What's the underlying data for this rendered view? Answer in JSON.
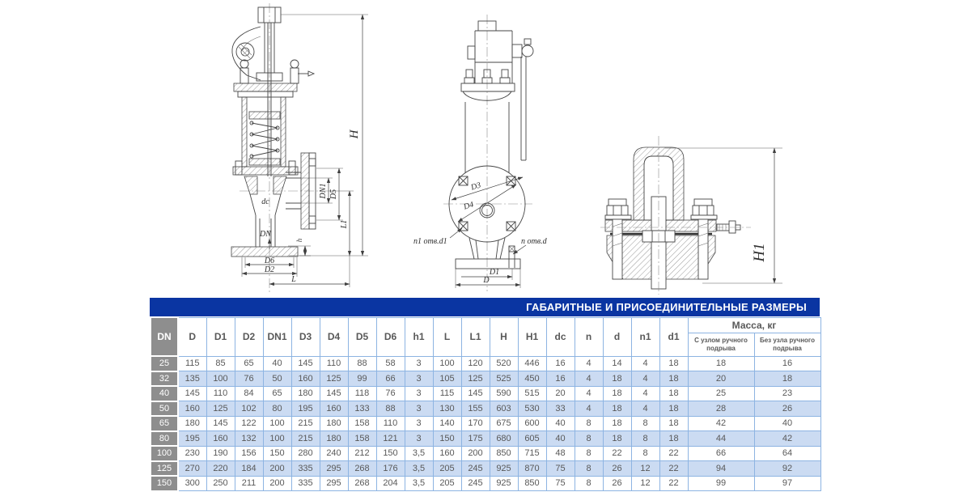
{
  "drawings": {
    "left": {
      "name": "valve cross-section drawing",
      "labels": {
        "H": "H",
        "DN1": "DN1",
        "D5": "D5",
        "L1": "L1",
        "dc": "dc",
        "DN": "DN",
        "h": "h",
        "D6": "D6",
        "D2": "D2",
        "L": "L"
      }
    },
    "middle": {
      "name": "valve outline drawing",
      "labels": {
        "D3": "D3",
        "D4": "D4",
        "n1_holes": "n1 отв.d1",
        "n_holes": "n отв.d",
        "D1": "D1",
        "D": "D"
      }
    },
    "right": {
      "name": "valve cap section drawing",
      "labels": {
        "H1": "H1"
      }
    }
  },
  "table": {
    "title": "ГАБАРИТНЫЕ И ПРИСОЕДИНИТЕЛЬНЫЕ РАЗМЕРЫ",
    "columns": [
      "DN",
      "D",
      "D1",
      "D2",
      "DN1",
      "D3",
      "D4",
      "D5",
      "D6",
      "h1",
      "L",
      "L1",
      "H",
      "H1",
      "dc",
      "n",
      "d",
      "n1",
      "d1"
    ],
    "mass_header": "Масса, кг",
    "mass_subcolumns": [
      "С узлом ручного подрыва",
      "Без узла ручного подрыва"
    ],
    "rows": [
      {
        "dn": "25",
        "values": [
          "115",
          "85",
          "65",
          "40",
          "145",
          "110",
          "88",
          "58",
          "3",
          "100",
          "120",
          "520",
          "446",
          "16",
          "4",
          "14",
          "4",
          "18"
        ],
        "mass": [
          "18",
          "16"
        ]
      },
      {
        "dn": "32",
        "values": [
          "135",
          "100",
          "76",
          "50",
          "160",
          "125",
          "99",
          "66",
          "3",
          "105",
          "125",
          "525",
          "450",
          "16",
          "4",
          "18",
          "4",
          "18"
        ],
        "mass": [
          "20",
          "18"
        ]
      },
      {
        "dn": "40",
        "values": [
          "145",
          "110",
          "84",
          "65",
          "180",
          "145",
          "118",
          "76",
          "3",
          "115",
          "145",
          "590",
          "515",
          "20",
          "4",
          "18",
          "4",
          "18"
        ],
        "mass": [
          "25",
          "23"
        ]
      },
      {
        "dn": "50",
        "values": [
          "160",
          "125",
          "102",
          "80",
          "195",
          "160",
          "133",
          "88",
          "3",
          "130",
          "155",
          "603",
          "530",
          "33",
          "4",
          "18",
          "4",
          "18"
        ],
        "mass": [
          "28",
          "26"
        ]
      },
      {
        "dn": "65",
        "values": [
          "180",
          "145",
          "122",
          "100",
          "215",
          "180",
          "158",
          "110",
          "3",
          "140",
          "170",
          "675",
          "600",
          "40",
          "8",
          "18",
          "8",
          "18"
        ],
        "mass": [
          "42",
          "40"
        ]
      },
      {
        "dn": "80",
        "values": [
          "195",
          "160",
          "132",
          "100",
          "215",
          "180",
          "158",
          "121",
          "3",
          "150",
          "175",
          "680",
          "605",
          "40",
          "8",
          "18",
          "8",
          "18"
        ],
        "mass": [
          "44",
          "42"
        ]
      },
      {
        "dn": "100",
        "values": [
          "230",
          "190",
          "156",
          "150",
          "280",
          "240",
          "212",
          "150",
          "3,5",
          "160",
          "200",
          "850",
          "715",
          "48",
          "8",
          "22",
          "8",
          "22"
        ],
        "mass": [
          "66",
          "64"
        ]
      },
      {
        "dn": "125",
        "values": [
          "270",
          "220",
          "184",
          "200",
          "335",
          "295",
          "268",
          "176",
          "3,5",
          "205",
          "245",
          "925",
          "870",
          "75",
          "8",
          "26",
          "12",
          "22"
        ],
        "mass": [
          "94",
          "92"
        ]
      },
      {
        "dn": "150",
        "values": [
          "300",
          "250",
          "211",
          "200",
          "335",
          "295",
          "268",
          "204",
          "3,5",
          "205",
          "245",
          "925",
          "850",
          "75",
          "8",
          "26",
          "12",
          "22"
        ],
        "mass": [
          "99",
          "97"
        ]
      }
    ],
    "colors": {
      "title_bg": "#0a35a2",
      "dn_bg": "#8e8e8e",
      "row_alt_bg": "#cbdbf2",
      "border": "#8db4e2",
      "text": "#595959"
    }
  }
}
